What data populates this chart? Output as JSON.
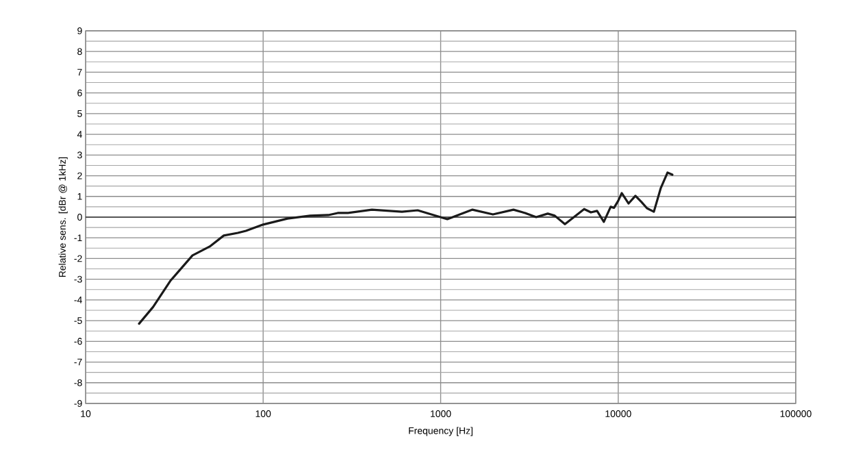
{
  "chart_data": {
    "type": "line",
    "xlabel": "Frequency [Hz]",
    "ylabel": "Relative sens. [dBr @ 1kHz]",
    "x": [
      20,
      24,
      30,
      40,
      50,
      60,
      72,
      80,
      100,
      137,
      184,
      233,
      263,
      300,
      410,
      605,
      742,
      968,
      1090,
      1510,
      1970,
      2570,
      2990,
      3450,
      4010,
      4390,
      5010,
      6430,
      7020,
      7600,
      8300,
      9070,
      9470,
      10000,
      10470,
      11440,
      12500,
      13520,
      14520,
      15880,
      17350,
      18960,
      20180
    ],
    "series": [
      {
        "color": "#1a1a1a",
        "values": [
          -5.15,
          -4.34,
          -3.08,
          -1.85,
          -1.42,
          -0.89,
          -0.76,
          -0.66,
          -0.36,
          -0.07,
          0.07,
          0.1,
          0.2,
          0.2,
          0.36,
          0.26,
          0.33,
          0.03,
          -0.1,
          0.36,
          0.13,
          0.36,
          0.2,
          0.0,
          0.17,
          0.07,
          -0.34,
          0.39,
          0.23,
          0.3,
          -0.23,
          0.5,
          0.45,
          0.79,
          1.16,
          0.66,
          1.03,
          0.73,
          0.43,
          0.26,
          1.39,
          2.15,
          2.05
        ]
      }
    ],
    "xlim": [
      10,
      100000
    ],
    "ylim": [
      -9,
      9
    ],
    "xticks": [
      10,
      100,
      1000,
      10000,
      100000
    ],
    "yticks": [
      -9,
      -8,
      -7,
      -6,
      -5,
      -4,
      -3,
      -2,
      -1,
      0,
      1,
      2,
      3,
      4,
      5,
      6,
      7,
      8,
      9
    ],
    "log": "x",
    "grid": true
  }
}
